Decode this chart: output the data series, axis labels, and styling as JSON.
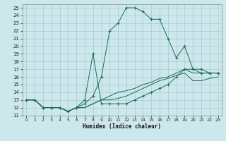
{
  "xlabel": "Humidex (Indice chaleur)",
  "background_color": "#cce8ec",
  "grid_color": "#aac8d0",
  "line_color": "#1a6b5a",
  "xlim": [
    -0.5,
    23.5
  ],
  "ylim": [
    11,
    25.5
  ],
  "xticks": [
    0,
    1,
    2,
    3,
    4,
    5,
    6,
    7,
    8,
    9,
    10,
    11,
    12,
    13,
    14,
    15,
    16,
    17,
    18,
    19,
    20,
    21,
    22,
    23
  ],
  "yticks": [
    11,
    12,
    13,
    14,
    15,
    16,
    17,
    18,
    19,
    20,
    21,
    22,
    23,
    24,
    25
  ],
  "series": [
    {
      "x": [
        0,
        1,
        2,
        3,
        4,
        5,
        6,
        7,
        8,
        9,
        10,
        11,
        12,
        13,
        14,
        15,
        16,
        17,
        18,
        19,
        20,
        21,
        22,
        23
      ],
      "y": [
        13,
        13,
        12,
        12,
        12,
        11.5,
        12,
        12.5,
        13.5,
        16,
        22,
        23,
        25,
        25,
        24.5,
        23.5,
        23.5,
        21,
        18.5,
        20,
        17,
        17,
        16.5,
        16.5
      ],
      "marker": true
    },
    {
      "x": [
        0,
        1,
        2,
        3,
        4,
        5,
        6,
        7,
        8,
        9,
        10,
        11,
        12,
        13,
        14,
        15,
        16,
        17,
        18,
        19,
        20,
        21,
        22,
        23
      ],
      "y": [
        13,
        13,
        12,
        12,
        12,
        11.5,
        12,
        13,
        19,
        12.5,
        12.5,
        12.5,
        12.5,
        13,
        13.5,
        14,
        14.5,
        15,
        16,
        17,
        17,
        16.5,
        16.5,
        16.5
      ],
      "marker": true
    },
    {
      "x": [
        0,
        1,
        2,
        3,
        4,
        5,
        6,
        7,
        8,
        9,
        10,
        11,
        12,
        13,
        14,
        15,
        16,
        17,
        18,
        19,
        20,
        21,
        22,
        23
      ],
      "y": [
        13,
        13,
        12,
        12,
        12,
        11.5,
        12,
        12,
        12.5,
        13,
        13.5,
        14,
        14.2,
        14.5,
        15,
        15.3,
        15.8,
        16,
        16.5,
        17,
        16.5,
        16.5,
        16.5,
        16.5
      ],
      "marker": false
    },
    {
      "x": [
        0,
        1,
        2,
        3,
        4,
        5,
        6,
        7,
        8,
        9,
        10,
        11,
        12,
        13,
        14,
        15,
        16,
        17,
        18,
        19,
        20,
        21,
        22,
        23
      ],
      "y": [
        13,
        13,
        12,
        12,
        12,
        11.5,
        12,
        12,
        12.5,
        13,
        13,
        13.2,
        13.5,
        14,
        14.5,
        15,
        15.5,
        15.8,
        16.2,
        16.5,
        15.5,
        15.5,
        15.8,
        16
      ],
      "marker": false
    }
  ]
}
